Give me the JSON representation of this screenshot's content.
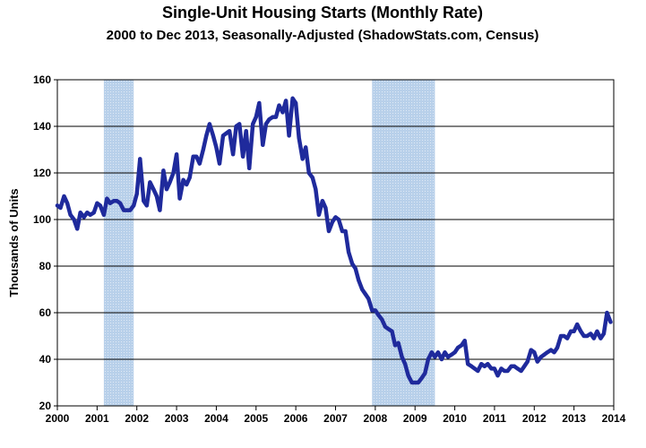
{
  "chart_data": {
    "type": "line",
    "title": "Single-Unit Housing Starts (Monthly Rate)",
    "subtitle": "2000 to Dec 2013, Seasonally-Adjusted (ShadowStats.com, Census)",
    "xlabel": "",
    "ylabel": "Thousands of Units",
    "xlim": [
      2000,
      2014
    ],
    "ylim": [
      20,
      160
    ],
    "grid": true,
    "x_ticks": [
      "2000",
      "2001",
      "2002",
      "2003",
      "2004",
      "2005",
      "2006",
      "2007",
      "2008",
      "2009",
      "2010",
      "2011",
      "2012",
      "2013",
      "2014"
    ],
    "y_ticks": [
      20,
      40,
      60,
      80,
      100,
      120,
      140,
      160
    ],
    "recessions": [
      {
        "start": 2001.17,
        "end": 2001.92
      },
      {
        "start": 2007.92,
        "end": 2009.5
      }
    ],
    "colors": {
      "line": "#1f2a9c",
      "recession": "#b8d0ea",
      "grid": "#000000"
    },
    "series": [
      {
        "name": "Single-Unit Housing Starts",
        "x": [
          2000.0,
          2000.08,
          2000.17,
          2000.25,
          2000.33,
          2000.42,
          2000.5,
          2000.58,
          2000.67,
          2000.75,
          2000.83,
          2000.92,
          2001.0,
          2001.08,
          2001.17,
          2001.25,
          2001.33,
          2001.42,
          2001.5,
          2001.58,
          2001.67,
          2001.75,
          2001.83,
          2001.92,
          2002.0,
          2002.08,
          2002.17,
          2002.25,
          2002.33,
          2002.42,
          2002.5,
          2002.58,
          2002.67,
          2002.75,
          2002.83,
          2002.92,
          2003.0,
          2003.08,
          2003.17,
          2003.25,
          2003.33,
          2003.42,
          2003.5,
          2003.58,
          2003.67,
          2003.75,
          2003.83,
          2003.92,
          2004.0,
          2004.08,
          2004.17,
          2004.25,
          2004.33,
          2004.42,
          2004.5,
          2004.58,
          2004.67,
          2004.75,
          2004.83,
          2004.92,
          2005.0,
          2005.08,
          2005.17,
          2005.25,
          2005.33,
          2005.42,
          2005.5,
          2005.58,
          2005.67,
          2005.75,
          2005.83,
          2005.92,
          2006.0,
          2006.08,
          2006.17,
          2006.25,
          2006.33,
          2006.42,
          2006.5,
          2006.58,
          2006.67,
          2006.75,
          2006.83,
          2006.92,
          2007.0,
          2007.08,
          2007.17,
          2007.25,
          2007.33,
          2007.42,
          2007.5,
          2007.58,
          2007.67,
          2007.75,
          2007.83,
          2007.92,
          2008.0,
          2008.08,
          2008.17,
          2008.25,
          2008.33,
          2008.42,
          2008.5,
          2008.58,
          2008.67,
          2008.75,
          2008.83,
          2008.92,
          2009.0,
          2009.08,
          2009.17,
          2009.25,
          2009.33,
          2009.42,
          2009.5,
          2009.58,
          2009.67,
          2009.75,
          2009.83,
          2009.92,
          2010.0,
          2010.08,
          2010.17,
          2010.25,
          2010.33,
          2010.42,
          2010.5,
          2010.58,
          2010.67,
          2010.75,
          2010.83,
          2010.92,
          2011.0,
          2011.08,
          2011.17,
          2011.25,
          2011.33,
          2011.42,
          2011.5,
          2011.58,
          2011.67,
          2011.75,
          2011.83,
          2011.92,
          2012.0,
          2012.08,
          2012.17,
          2012.25,
          2012.33,
          2012.42,
          2012.5,
          2012.58,
          2012.67,
          2012.75,
          2012.83,
          2012.92,
          2013.0,
          2013.08,
          2013.17,
          2013.25,
          2013.33,
          2013.42,
          2013.5,
          2013.58,
          2013.67,
          2013.75,
          2013.83,
          2013.92
        ],
        "values": [
          106,
          105,
          110,
          107,
          102,
          100,
          96,
          103,
          101,
          103,
          102,
          103,
          107,
          106,
          102,
          109,
          107,
          108,
          108,
          107,
          104,
          104,
          104,
          106,
          111,
          126,
          108,
          106,
          116,
          113,
          110,
          104,
          121,
          113,
          116,
          120,
          128,
          109,
          117,
          115,
          118,
          127,
          127,
          124,
          130,
          136,
          141,
          136,
          131,
          124,
          136,
          137,
          138,
          128,
          140,
          141,
          127,
          138,
          122,
          141,
          144,
          150,
          132,
          141,
          143,
          144,
          144,
          149,
          146,
          151,
          136,
          152,
          150,
          135,
          126,
          131,
          120,
          118,
          113,
          102,
          108,
          105,
          95,
          99,
          101,
          100,
          95,
          95,
          86,
          81,
          79,
          74,
          70,
          68,
          66,
          61,
          61,
          59,
          57,
          54,
          53,
          52,
          46,
          47,
          41,
          38,
          33,
          30,
          30,
          30,
          32,
          34,
          40,
          43,
          41,
          43,
          40,
          43,
          41,
          42,
          43,
          45,
          46,
          48,
          38,
          37,
          36,
          35,
          38,
          37,
          38,
          36,
          36,
          33,
          36,
          35,
          35,
          37,
          37,
          36,
          35,
          37,
          39,
          44,
          43,
          39,
          41,
          42,
          43,
          44,
          43,
          45,
          50,
          50,
          49,
          52,
          52,
          55,
          52,
          50,
          50,
          51,
          49,
          52,
          49,
          51,
          60,
          56
        ]
      }
    ]
  }
}
